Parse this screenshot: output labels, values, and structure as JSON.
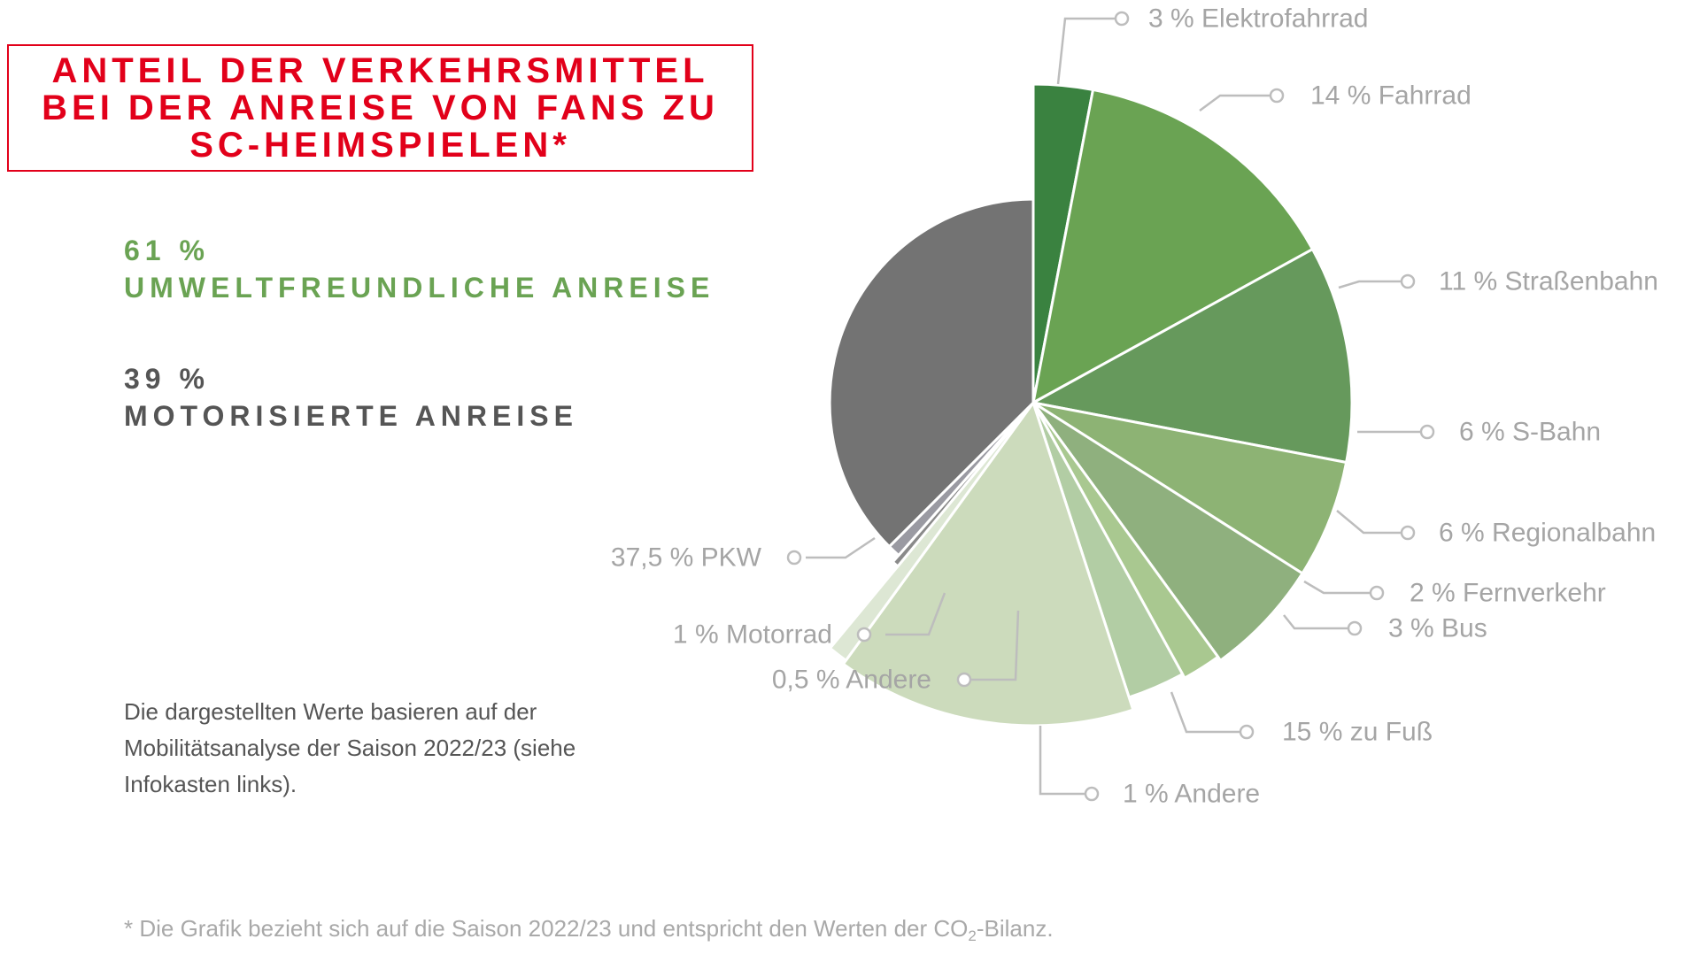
{
  "title": "ANTEIL DER VERKEHRSMITTEL BEI DER ANREISE VON FANS ZU SC-HEIMSPIELEN*",
  "summary": {
    "green": {
      "pct": "61 %",
      "label": "UMWELTFREUNDLICHE ANREISE",
      "color": "#6aa353"
    },
    "grey": {
      "pct": "39 %",
      "label": "MOTORISIERTE ANREISE",
      "color": "#555555"
    }
  },
  "note": "Die dargestellten Werte basieren auf der Mobilitätsanalyse der Saison 2022/23 (siehe Infokasten links).",
  "footnote": {
    "before": "* Die Grafik bezieht sich auf die Saison 2022/23 und entspricht den Werten der CO",
    "sub": "2",
    "after": "-Bilanz."
  },
  "chart_data": {
    "type": "pie",
    "slices": [
      {
        "label": "3 % Elektrofahrrad",
        "value": 3,
        "color": "#3a8240"
      },
      {
        "label": "14 % Fahrrad",
        "value": 14,
        "color": "#6aa353"
      },
      {
        "label": "11 % Straßenbahn",
        "value": 11,
        "color": "#66995c"
      },
      {
        "label": "6 % S-Bahn",
        "value": 6,
        "color": "#8db374"
      },
      {
        "label": "6 % Regionalbahn",
        "value": 6,
        "color": "#8fb07e"
      },
      {
        "label": "2 % Fernverkehr",
        "value": 2,
        "color": "#a9c890"
      },
      {
        "label": "3 % Bus",
        "value": 3,
        "color": "#b2cda4"
      },
      {
        "label": "15 % zu Fuß",
        "value": 15,
        "color": "#ccdbbc"
      },
      {
        "label": "1 % Andere",
        "value": 1,
        "color": "#dde7d4"
      },
      {
        "label": "0,5 % Andere",
        "value": 0.5,
        "color": "#8a8a8a"
      },
      {
        "label": "1 % Motorrad",
        "value": 1,
        "color": "#9a9aa2"
      },
      {
        "label": "37,5 % PKW",
        "value": 37.5,
        "color": "#737373"
      }
    ]
  }
}
